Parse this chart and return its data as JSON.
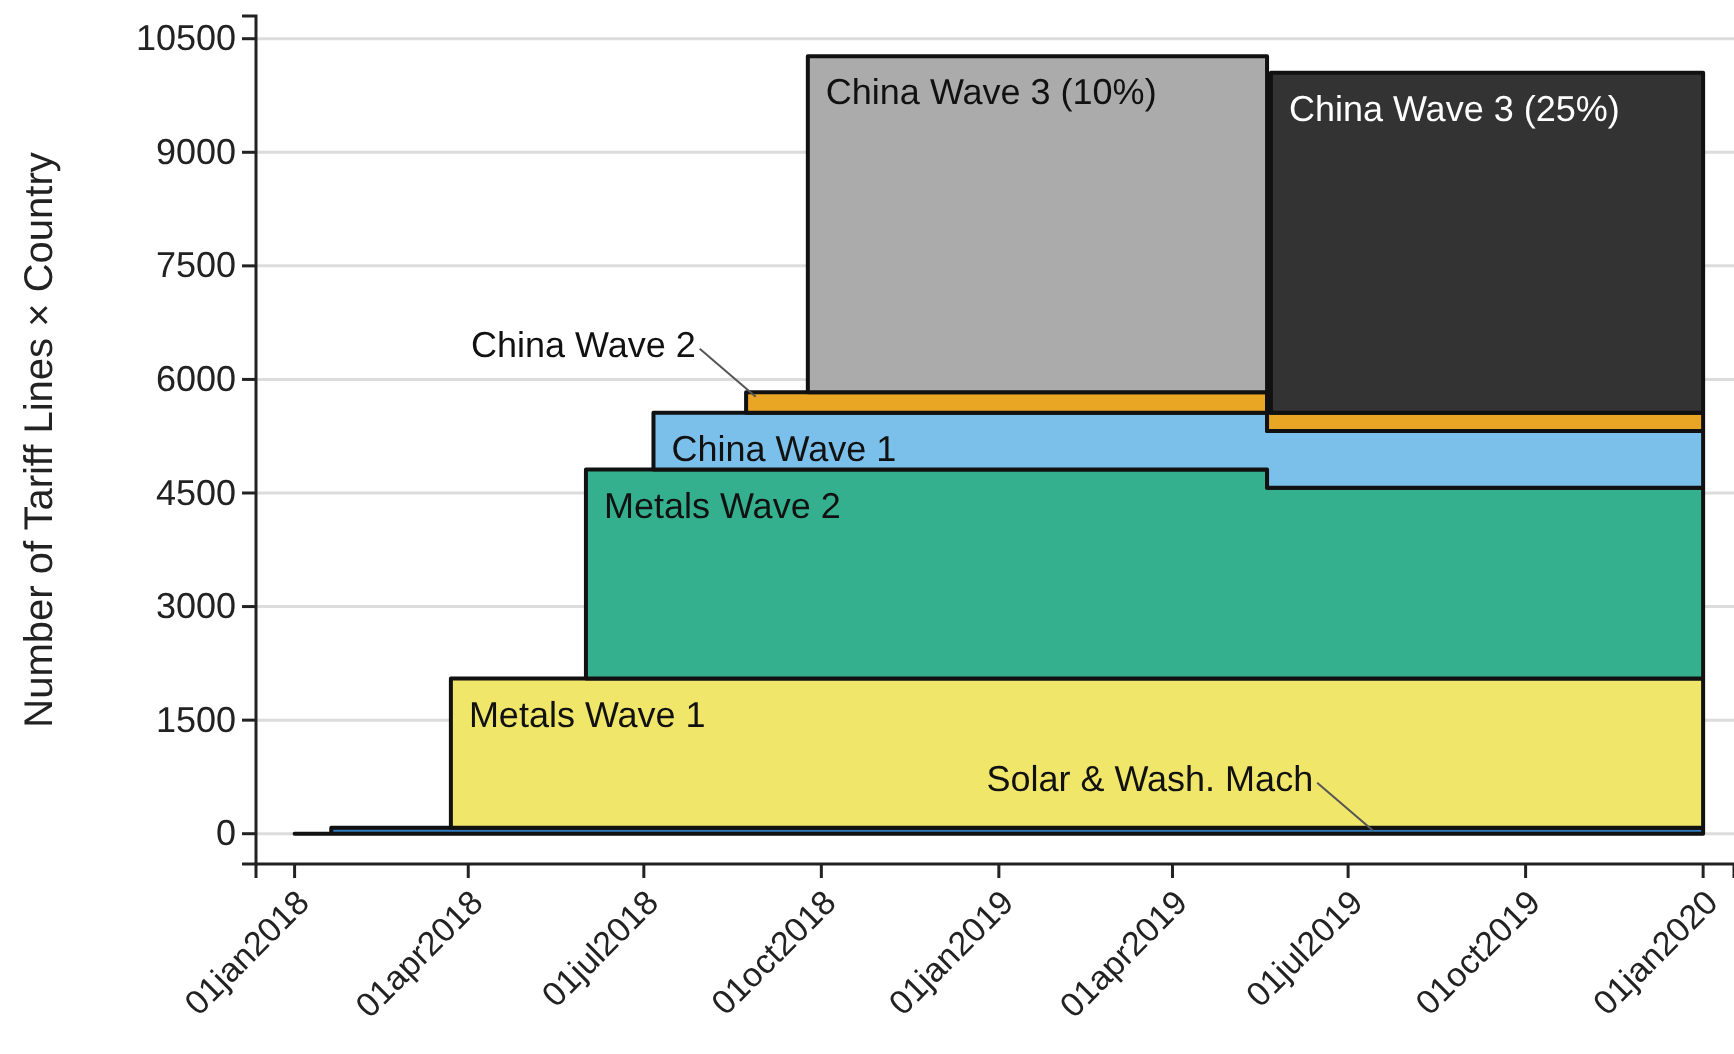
{
  "chart_data": {
    "type": "area",
    "stacked": true,
    "line_style": "solid",
    "ylabel": "Number of Tariff Lines × Country",
    "x": [
      "2018-01-01",
      "2018-01-20",
      "2018-03-23",
      "2018-06-01",
      "2018-07-06",
      "2018-08-23",
      "2018-09-24",
      "2019-05-20",
      "2019-05-22",
      "2020-01-01"
    ],
    "series": [
      {
        "color": "#2f7bbf",
        "values": [
          0,
          80,
          80,
          80,
          80,
          80,
          80,
          80,
          80,
          80
        ]
      },
      {
        "name": "Metals Wave 1",
        "color": "#f0e66a",
        "values": [
          null,
          null,
          1970,
          1970,
          1970,
          1970,
          1970,
          1970,
          1970,
          1970
        ]
      },
      {
        "name": "Metals Wave 2",
        "color": "#35b08e",
        "values": [
          null,
          null,
          null,
          2760,
          2760,
          2760,
          2760,
          2520,
          2520,
          2520
        ]
      },
      {
        "name": "China Wave 1",
        "color": "#7ac0ea",
        "values": [
          null,
          null,
          null,
          null,
          750,
          750,
          750,
          750,
          750,
          750
        ]
      },
      {
        "color": "#e8a624",
        "values": [
          null,
          null,
          null,
          null,
          null,
          270,
          270,
          240,
          240,
          240
        ]
      },
      {
        "name": "China Wave 3 (10%)",
        "color": "#ababab",
        "values": [
          null,
          null,
          null,
          null,
          null,
          null,
          4440,
          4440,
          null,
          null
        ]
      },
      {
        "name": "China Wave 3 (25%)",
        "color": "#333333",
        "values": [
          null,
          null,
          null,
          null,
          null,
          null,
          null,
          null,
          4490,
          4490
        ]
      }
    ],
    "annotations": [
      {
        "text": "Solar & Wash. Mach",
        "x": "2019-07-14",
        "y": 40
      },
      {
        "text": "China Wave 2",
        "x": "2018-08-28",
        "y": 5770
      }
    ],
    "xlim": [
      "2017-12-12",
      "2020-01-17"
    ],
    "xticks": [
      {
        "value": "2018-01-01",
        "label": "01jan2018"
      },
      {
        "value": "2018-04-01",
        "label": "01apr2018"
      },
      {
        "value": "2018-07-01",
        "label": "01jul2018"
      },
      {
        "value": "2018-10-01",
        "label": "01oct2018"
      },
      {
        "value": "2019-01-01",
        "label": "01jan2019"
      },
      {
        "value": "2019-04-01",
        "label": "01apr2019"
      },
      {
        "value": "2019-07-01",
        "label": "01jul2019"
      },
      {
        "value": "2019-10-01",
        "label": "01oct2019"
      },
      {
        "value": "2020-01-01",
        "label": "01jan2020"
      }
    ],
    "ylim": [
      -400,
      10800
    ],
    "yticks": [
      0,
      1500,
      3000,
      4500,
      6000,
      7500,
      9000,
      10500
    ],
    "grid": "y",
    "legend": false
  }
}
